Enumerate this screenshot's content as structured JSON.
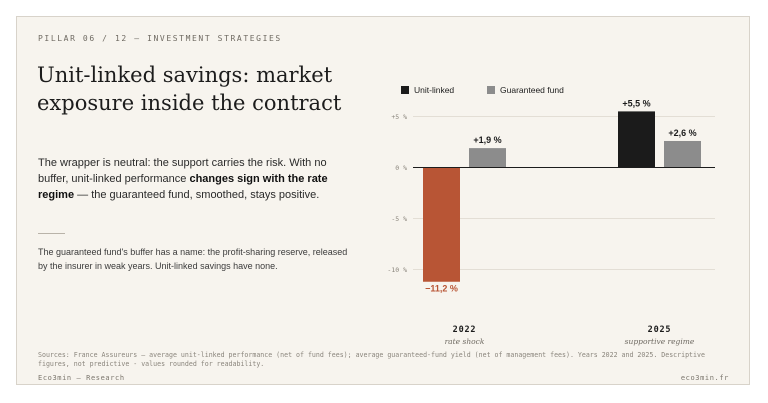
{
  "eyebrow": "PILLAR 06 / 12 — INVESTMENT STRATEGIES",
  "title": "Unit-linked savings: market exposure inside the contract",
  "lead": {
    "part1": "The wrapper is neutral: the support carries the risk. With no buffer, unit-linked performance ",
    "bold": "changes sign with the rate regime",
    "part2": " — the guaranteed fund, smoothed, stays positive."
  },
  "note": "The guaranteed fund's buffer has a name: the profit-sharing reserve, released by the insurer in weak years. Unit-linked savings have none.",
  "sources": "Sources: France Assureurs — average unit-linked performance (net of fund fees); average guaranteed-fund yield (net of management fees). Years 2022 and 2025. Descriptive figures, not predictive - values rounded for readability.",
  "footer": {
    "left": "Eco3min — Research",
    "right": "eco3min.fr"
  },
  "colors": {
    "unit_linked_negative": "#b85535",
    "unit_linked_positive": "#1b1b1b",
    "guaranteed": "#8c8c8c"
  },
  "chart_data": {
    "type": "bar",
    "categories": [
      "2022",
      "2025"
    ],
    "category_sublabels": [
      "rate shock",
      "supportive regime"
    ],
    "series": [
      {
        "name": "Unit-linked",
        "values": [
          -11.2,
          5.5
        ],
        "labels": [
          "−11,2 %",
          "+5,5 %"
        ]
      },
      {
        "name": "Guaranteed fund",
        "values": [
          1.9,
          2.6
        ],
        "labels": [
          "+1,9 %",
          "+2,6 %"
        ]
      }
    ],
    "yticks": [
      5,
      0,
      -5,
      -10
    ],
    "ytick_labels": [
      "+5 %",
      "0 %",
      "-5 %",
      "-10 %"
    ],
    "ylim": [
      -11.2,
      6.2
    ],
    "grid": true,
    "legend": "top-left"
  }
}
